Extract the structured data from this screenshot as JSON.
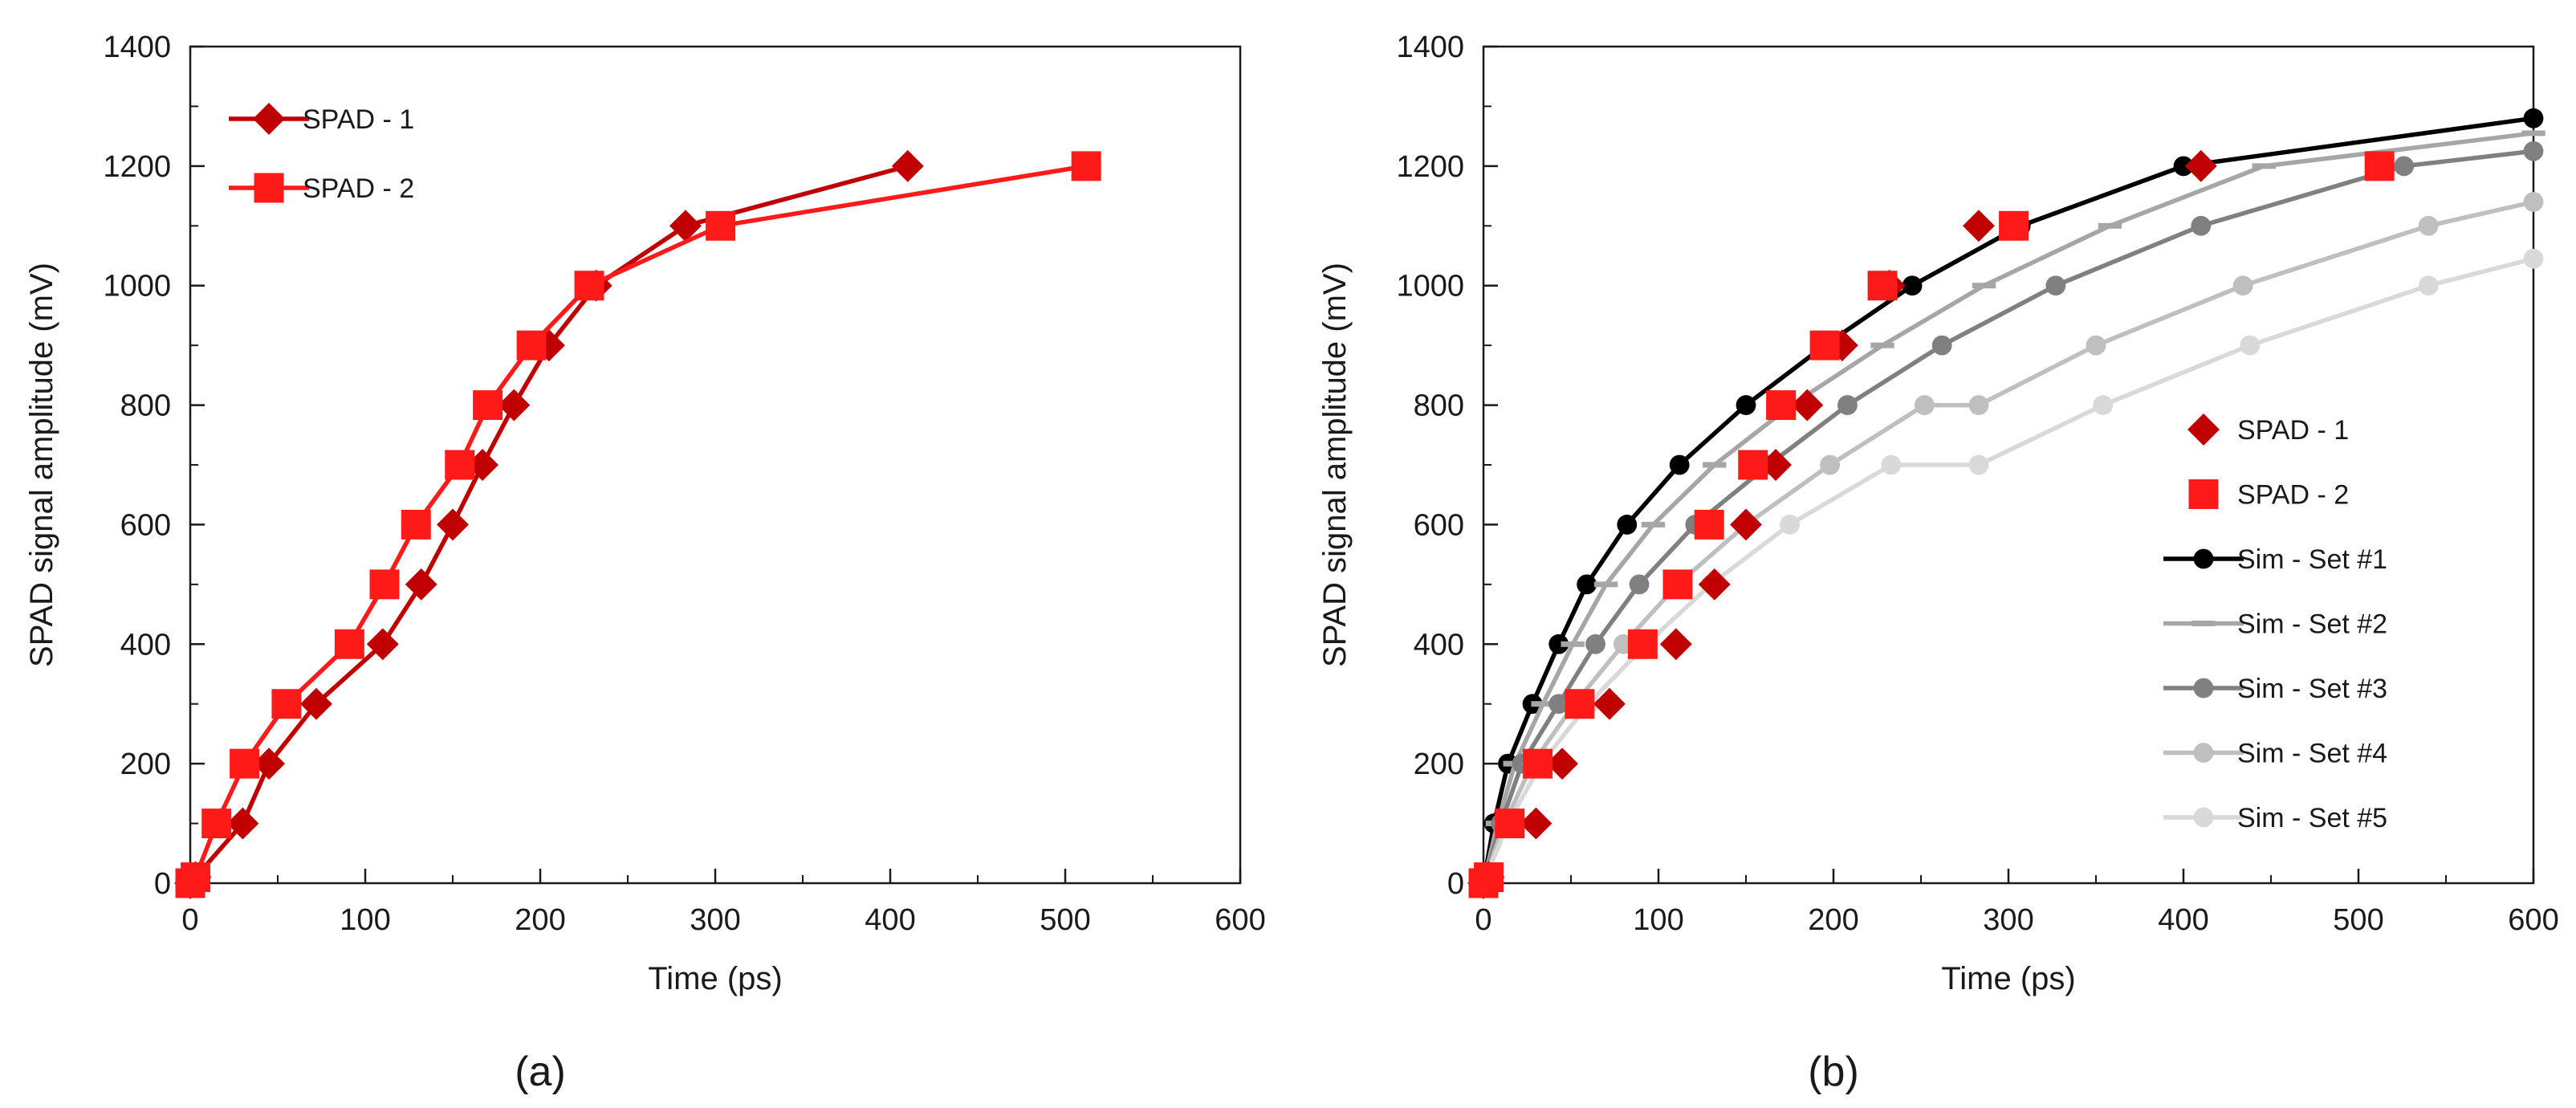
{
  "chart_data": [
    {
      "type": "line",
      "panel_label": "(a)",
      "xlabel": "Time (ps)",
      "ylabel": "SPAD signal amplitude (mV)",
      "xlim": [
        0,
        600
      ],
      "ylim": [
        0,
        1400
      ],
      "xticks": [
        0,
        100,
        200,
        300,
        400,
        500,
        600
      ],
      "yticks": [
        0,
        200,
        400,
        600,
        800,
        1000,
        1200,
        1400
      ],
      "grid": false,
      "legend_position": "top-left",
      "series": [
        {
          "name": "SPAD - 1",
          "color": "#c00000",
          "marker": "diamond",
          "line": true,
          "x": [
            0,
            3,
            30,
            45,
            72,
            110,
            132,
            150,
            167,
            185,
            205,
            232,
            283,
            410
          ],
          "y": [
            0,
            10,
            100,
            200,
            300,
            400,
            500,
            600,
            700,
            800,
            900,
            1000,
            1100,
            1200
          ]
        },
        {
          "name": "SPAD - 2",
          "color": "#ff1a1a",
          "marker": "square",
          "line": true,
          "x": [
            0,
            3,
            15,
            31,
            55,
            91,
            111,
            129,
            154,
            170,
            195,
            228,
            303,
            512
          ],
          "y": [
            0,
            10,
            100,
            200,
            300,
            400,
            500,
            600,
            700,
            800,
            900,
            1000,
            1100,
            1200
          ]
        }
      ]
    },
    {
      "type": "line",
      "panel_label": "(b)",
      "xlabel": "Time (ps)",
      "ylabel": "SPAD signal amplitude (mV)",
      "xlim": [
        0,
        600
      ],
      "ylim": [
        0,
        1400
      ],
      "xticks": [
        0,
        100,
        200,
        300,
        400,
        500,
        600
      ],
      "yticks": [
        0,
        200,
        400,
        600,
        800,
        1000,
        1200,
        1400
      ],
      "grid": false,
      "legend_position": "center-right",
      "series": [
        {
          "name": "SPAD - 1",
          "color": "#c00000",
          "marker": "diamond",
          "line": false,
          "x": [
            0,
            3,
            30,
            45,
            72,
            110,
            132,
            150,
            167,
            185,
            205,
            232,
            283,
            410
          ],
          "y": [
            0,
            10,
            100,
            200,
            300,
            400,
            500,
            600,
            700,
            800,
            900,
            1000,
            1100,
            1200
          ]
        },
        {
          "name": "SPAD - 2",
          "color": "#ff1a1a",
          "marker": "square",
          "line": false,
          "x": [
            0,
            3,
            15,
            31,
            55,
            91,
            111,
            129,
            154,
            170,
            195,
            228,
            303,
            512
          ],
          "y": [
            0,
            10,
            100,
            200,
            300,
            400,
            500,
            600,
            700,
            800,
            900,
            1000,
            1100,
            1200
          ]
        },
        {
          "name": "Sim - Set #1",
          "color": "#000000",
          "marker": "circle",
          "line": true,
          "x": [
            0,
            6,
            14,
            28,
            43,
            59,
            82,
            112,
            150,
            195,
            245,
            307,
            400,
            600
          ],
          "y": [
            0,
            100,
            200,
            300,
            400,
            500,
            600,
            700,
            800,
            900,
            1000,
            1100,
            1200,
            1280
          ]
        },
        {
          "name": "Sim - Set #2",
          "color": "#a6a6a6",
          "marker": "dash",
          "line": true,
          "x": [
            0,
            8,
            18,
            34,
            51,
            70,
            97,
            132,
            176,
            228,
            286,
            358,
            446,
            600
          ],
          "y": [
            0,
            100,
            200,
            300,
            400,
            500,
            600,
            700,
            800,
            900,
            1000,
            1100,
            1200,
            1255
          ]
        },
        {
          "name": "Sim - Set #3",
          "color": "#808080",
          "marker": "circle",
          "line": true,
          "x": [
            0,
            10,
            22,
            43,
            64,
            89,
            121,
            163,
            208,
            262,
            327,
            410,
            526,
            600
          ],
          "y": [
            0,
            100,
            200,
            300,
            400,
            500,
            600,
            700,
            800,
            900,
            1000,
            1100,
            1200,
            1225
          ]
        },
        {
          "name": "Sim - Set #4",
          "color": "#bfbfbf",
          "marker": "circle",
          "line": true,
          "x": [
            0,
            12,
            28,
            52,
            80,
            111,
            150,
            198,
            252,
            283,
            350,
            434,
            540,
            600
          ],
          "y": [
            0,
            100,
            200,
            300,
            400,
            500,
            600,
            700,
            800,
            800,
            900,
            1000,
            1100,
            1140
          ]
        },
        {
          "name": "Sim - Set #5",
          "color": "#d9d9d9",
          "marker": "circle",
          "line": true,
          "x": [
            0,
            14,
            33,
            60,
            93,
            130,
            175,
            233,
            283,
            354,
            438,
            540,
            600
          ],
          "y": [
            0,
            100,
            200,
            300,
            400,
            500,
            600,
            700,
            700,
            800,
            900,
            1000,
            1045
          ]
        }
      ]
    }
  ]
}
